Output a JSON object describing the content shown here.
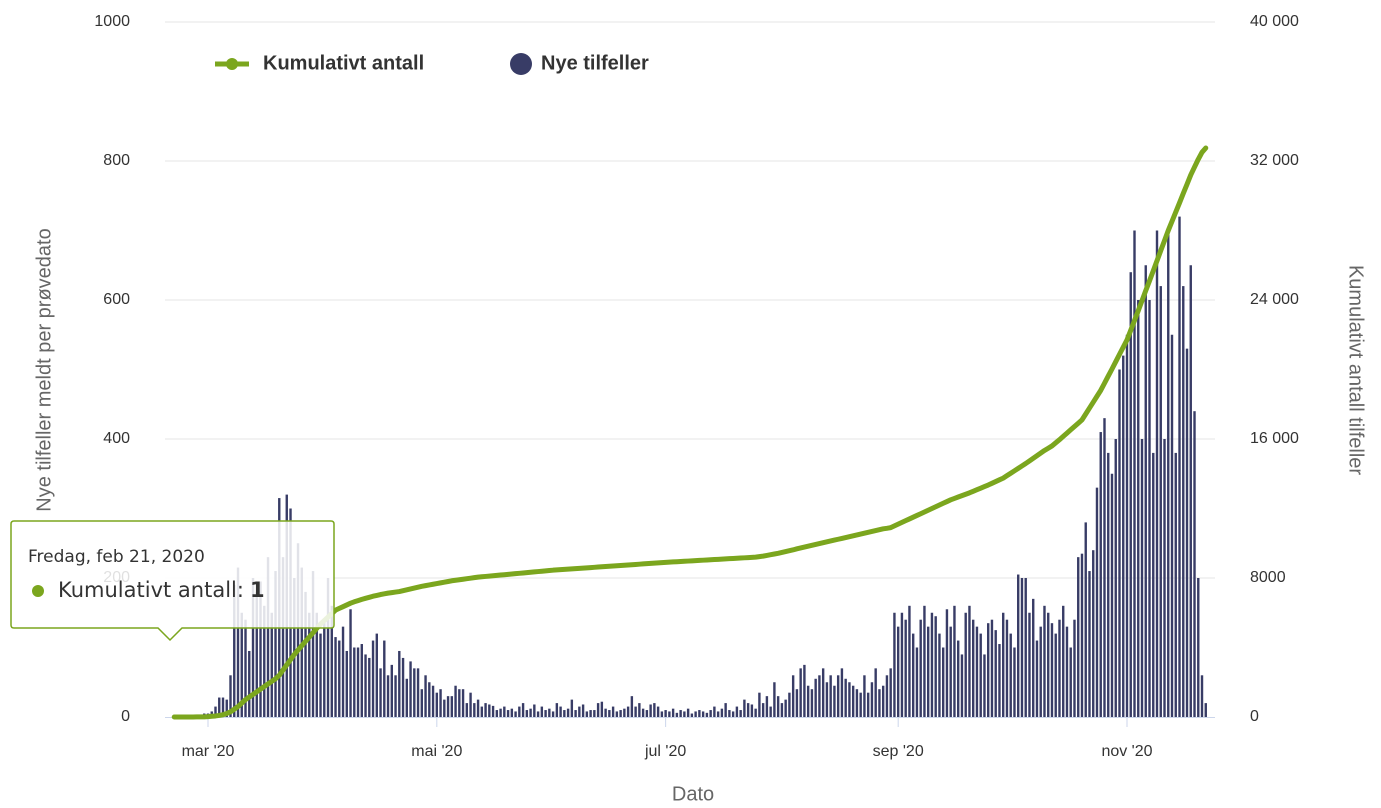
{
  "chart_data": {
    "type": "bar",
    "xlabel": "Dato",
    "ylabel": "Nye tilfeller meldt per prøvedato",
    "y2label": "Kumulativt antall tilfeller",
    "ylim": [
      0,
      1000
    ],
    "yticks": [
      0,
      200,
      400,
      600,
      800,
      1000
    ],
    "y2lim": [
      0,
      40000
    ],
    "y2ticks": [
      0,
      8000,
      {
        "value": 16000,
        "label": "16 000"
      },
      {
        "value": 24000,
        "label": "24 000"
      },
      {
        "value": 32000,
        "label": "32 000"
      },
      {
        "value": 40000,
        "label": "40 000"
      }
    ],
    "grid": true,
    "legend": "top-left",
    "categories": [
      null,
      null,
      null,
      null,
      null,
      null,
      null,
      null,
      null,
      "mar '20",
      null,
      null,
      null,
      null,
      null,
      null,
      null,
      null,
      null,
      null,
      null,
      null,
      null,
      null,
      null,
      null,
      null,
      null,
      null,
      null,
      null,
      null,
      null,
      null,
      null,
      null,
      null,
      null,
      null,
      null,
      null,
      null,
      null,
      null,
      null,
      null,
      null,
      null,
      null,
      null,
      null,
      null,
      null,
      null,
      null,
      null,
      null,
      null,
      null,
      null,
      null,
      null,
      null,
      null,
      null,
      null,
      null,
      null,
      null,
      null,
      "mai '20",
      null,
      null,
      null,
      null,
      null,
      null,
      null,
      null,
      null,
      null,
      null,
      null,
      null,
      null,
      null,
      null,
      null,
      null,
      null,
      null,
      null,
      null,
      null,
      null,
      null,
      null,
      null,
      null,
      null,
      null,
      null,
      null,
      null,
      null,
      null,
      null,
      null,
      null,
      null,
      null,
      null,
      null,
      null,
      null,
      null,
      null,
      null,
      null,
      null,
      null,
      null,
      null,
      null,
      null,
      null,
      null,
      null,
      null,
      null,
      null,
      "jul '20",
      null,
      null,
      null,
      null,
      null,
      null,
      null,
      null,
      null,
      null,
      null,
      null,
      null,
      null,
      null,
      null,
      null,
      null,
      null,
      null,
      null,
      null,
      null,
      null,
      null,
      null,
      null,
      null,
      null,
      null,
      null,
      null,
      null,
      null,
      null,
      null,
      null,
      null,
      null,
      null,
      null,
      null,
      null,
      null,
      null,
      null,
      null,
      null,
      null,
      null,
      null,
      null,
      null,
      null,
      null,
      null,
      null,
      null,
      null,
      null,
      null,
      "sep '20",
      null,
      null,
      null,
      null,
      null,
      null,
      null,
      null,
      null,
      null,
      null,
      null,
      null,
      null,
      null,
      null,
      null,
      null,
      null,
      null,
      null,
      null,
      null,
      null,
      null,
      null,
      null,
      null,
      null,
      null,
      null,
      null,
      null,
      null,
      null,
      null,
      null,
      null,
      null,
      null,
      null,
      null,
      null,
      null,
      null,
      null,
      null,
      null,
      null,
      null,
      null,
      null,
      null,
      null,
      null,
      null,
      null,
      null,
      null,
      null,
      "nov '20",
      null,
      null,
      null,
      null,
      null,
      null,
      null,
      null,
      null,
      null,
      null,
      null,
      null,
      null,
      null,
      null,
      null,
      null,
      null,
      null,
      null
    ],
    "series": [
      {
        "name": "Kumulativt antall",
        "type": "line",
        "axis": "y2",
        "color": "#7ba61e",
        "values": [
          1,
          1,
          1,
          1,
          2,
          3,
          4,
          6,
          10,
          20,
          40,
          60,
          90,
          130,
          200,
          300,
          450,
          600,
          800,
          1000,
          1150,
          1300,
          1450,
          1600,
          1750,
          1900,
          2050,
          2200,
          2400,
          2700,
          3000,
          3300,
          3600,
          3850,
          4100,
          4350,
          4600,
          4850,
          5100,
          5350,
          5550,
          5750,
          5950,
          6150,
          6250,
          6350,
          6450,
          6550,
          6630,
          6700,
          6770,
          6830,
          6890,
          6950,
          7000,
          7050,
          7090,
          7130,
          7160,
          7190,
          7220,
          7270,
          7320,
          7370,
          7420,
          7470,
          7520,
          7560,
          7600,
          7640,
          7680,
          7720,
          7760,
          7800,
          7840,
          7870,
          7900,
          7930,
          7960,
          7990,
          8020,
          8050,
          8070,
          8090,
          8110,
          8130,
          8150,
          8170,
          8190,
          8210,
          8230,
          8250,
          8270,
          8290,
          8310,
          8330,
          8350,
          8370,
          8390,
          8410,
          8430,
          8450,
          8465,
          8480,
          8495,
          8510,
          8525,
          8540,
          8555,
          8570,
          8585,
          8600,
          8615,
          8630,
          8645,
          8660,
          8675,
          8690,
          8705,
          8720,
          8735,
          8750,
          8765,
          8780,
          8795,
          8810,
          8825,
          8840,
          8855,
          8870,
          8885,
          8900,
          8912,
          8925,
          8937,
          8950,
          8962,
          8975,
          8987,
          9000,
          9012,
          9025,
          9037,
          9050,
          9062,
          9075,
          9087,
          9100,
          9112,
          9125,
          9137,
          9150,
          9162,
          9175,
          9187,
          9200,
          9230,
          9260,
          9300,
          9340,
          9380,
          9420,
          9470,
          9520,
          9570,
          9620,
          9680,
          9730,
          9780,
          9830,
          9880,
          9930,
          9980,
          10030,
          10080,
          10130,
          10180,
          10230,
          10280,
          10330,
          10380,
          10430,
          10480,
          10530,
          10580,
          10630,
          10680,
          10730,
          10780,
          10830,
          10860,
          10900,
          11000,
          11100,
          11200,
          11300,
          11400,
          11500,
          11600,
          11700,
          11800,
          11900,
          12000,
          12100,
          12200,
          12300,
          12400,
          12500,
          12580,
          12660,
          12740,
          12820,
          12900,
          12990,
          13080,
          13170,
          13260,
          13350,
          13450,
          13550,
          13650,
          13750,
          13890,
          14030,
          14170,
          14310,
          14450,
          14590,
          14740,
          14890,
          15040,
          15190,
          15340,
          15470,
          15600,
          15780,
          15960,
          16150,
          16340,
          16530,
          16720,
          16910,
          17100,
          17440,
          17780,
          18120,
          18460,
          18800,
          19210,
          19620,
          20030,
          20450,
          20870,
          21290,
          21700,
          22260,
          22820,
          23380,
          23960,
          24540,
          25100,
          25680,
          26260,
          26840,
          27420,
          28000,
          28530,
          29060,
          29590,
          30130,
          30660,
          31200,
          31650,
          32100,
          32500,
          32750
        ]
      },
      {
        "name": "Nye tilfeller",
        "type": "bar",
        "color": "#383c66",
        "values": [
          0,
          0,
          0,
          0,
          0,
          0,
          1,
          2,
          5,
          5,
          8,
          15,
          28,
          28,
          25,
          60,
          190,
          215,
          150,
          140,
          95,
          200,
          180,
          195,
          160,
          230,
          150,
          210,
          315,
          230,
          320,
          300,
          200,
          250,
          215,
          180,
          150,
          210,
          150,
          120,
          140,
          200,
          160,
          115,
          110,
          130,
          95,
          155,
          100,
          100,
          105,
          90,
          85,
          110,
          120,
          70,
          110,
          60,
          75,
          60,
          95,
          85,
          55,
          80,
          70,
          70,
          40,
          60,
          50,
          45,
          35,
          40,
          25,
          30,
          30,
          45,
          40,
          40,
          20,
          35,
          20,
          25,
          15,
          20,
          18,
          16,
          10,
          12,
          15,
          10,
          12,
          8,
          15,
          20,
          10,
          12,
          18,
          8,
          15,
          10,
          12,
          8,
          20,
          15,
          10,
          12,
          25,
          10,
          15,
          18,
          8,
          10,
          10,
          20,
          22,
          12,
          10,
          15,
          8,
          10,
          12,
          15,
          30,
          15,
          20,
          12,
          10,
          18,
          20,
          15,
          8,
          10,
          8,
          12,
          6,
          10,
          8,
          12,
          5,
          8,
          10,
          8,
          6,
          10,
          15,
          8,
          12,
          20,
          10,
          8,
          15,
          10,
          25,
          20,
          18,
          12,
          35,
          20,
          30,
          15,
          50,
          30,
          20,
          25,
          35,
          60,
          40,
          70,
          75,
          45,
          40,
          55,
          60,
          70,
          50,
          60,
          45,
          60,
          70,
          55,
          50,
          45,
          40,
          35,
          60,
          35,
          50,
          70,
          40,
          45,
          60,
          70,
          150,
          130,
          150,
          140,
          160,
          120,
          100,
          140,
          160,
          130,
          150,
          145,
          120,
          100,
          155,
          130,
          160,
          110,
          90,
          150,
          160,
          140,
          130,
          120,
          90,
          135,
          140,
          125,
          105,
          150,
          140,
          120,
          100,
          205,
          200,
          200,
          150,
          170,
          110,
          130,
          160,
          150,
          135,
          120,
          140,
          160,
          130,
          100,
          140,
          230,
          235,
          280,
          210,
          240,
          330,
          410,
          430,
          380,
          350,
          400,
          500,
          520,
          550,
          640,
          700,
          600,
          400,
          650,
          600,
          380,
          700,
          620,
          400,
          700,
          550,
          380,
          720,
          620,
          530,
          650,
          440,
          200,
          60,
          20
        ]
      }
    ],
    "tooltip": {
      "title": "Fredag, feb 21, 2020",
      "label": "Kumulativt antall:",
      "value": 1
    }
  }
}
